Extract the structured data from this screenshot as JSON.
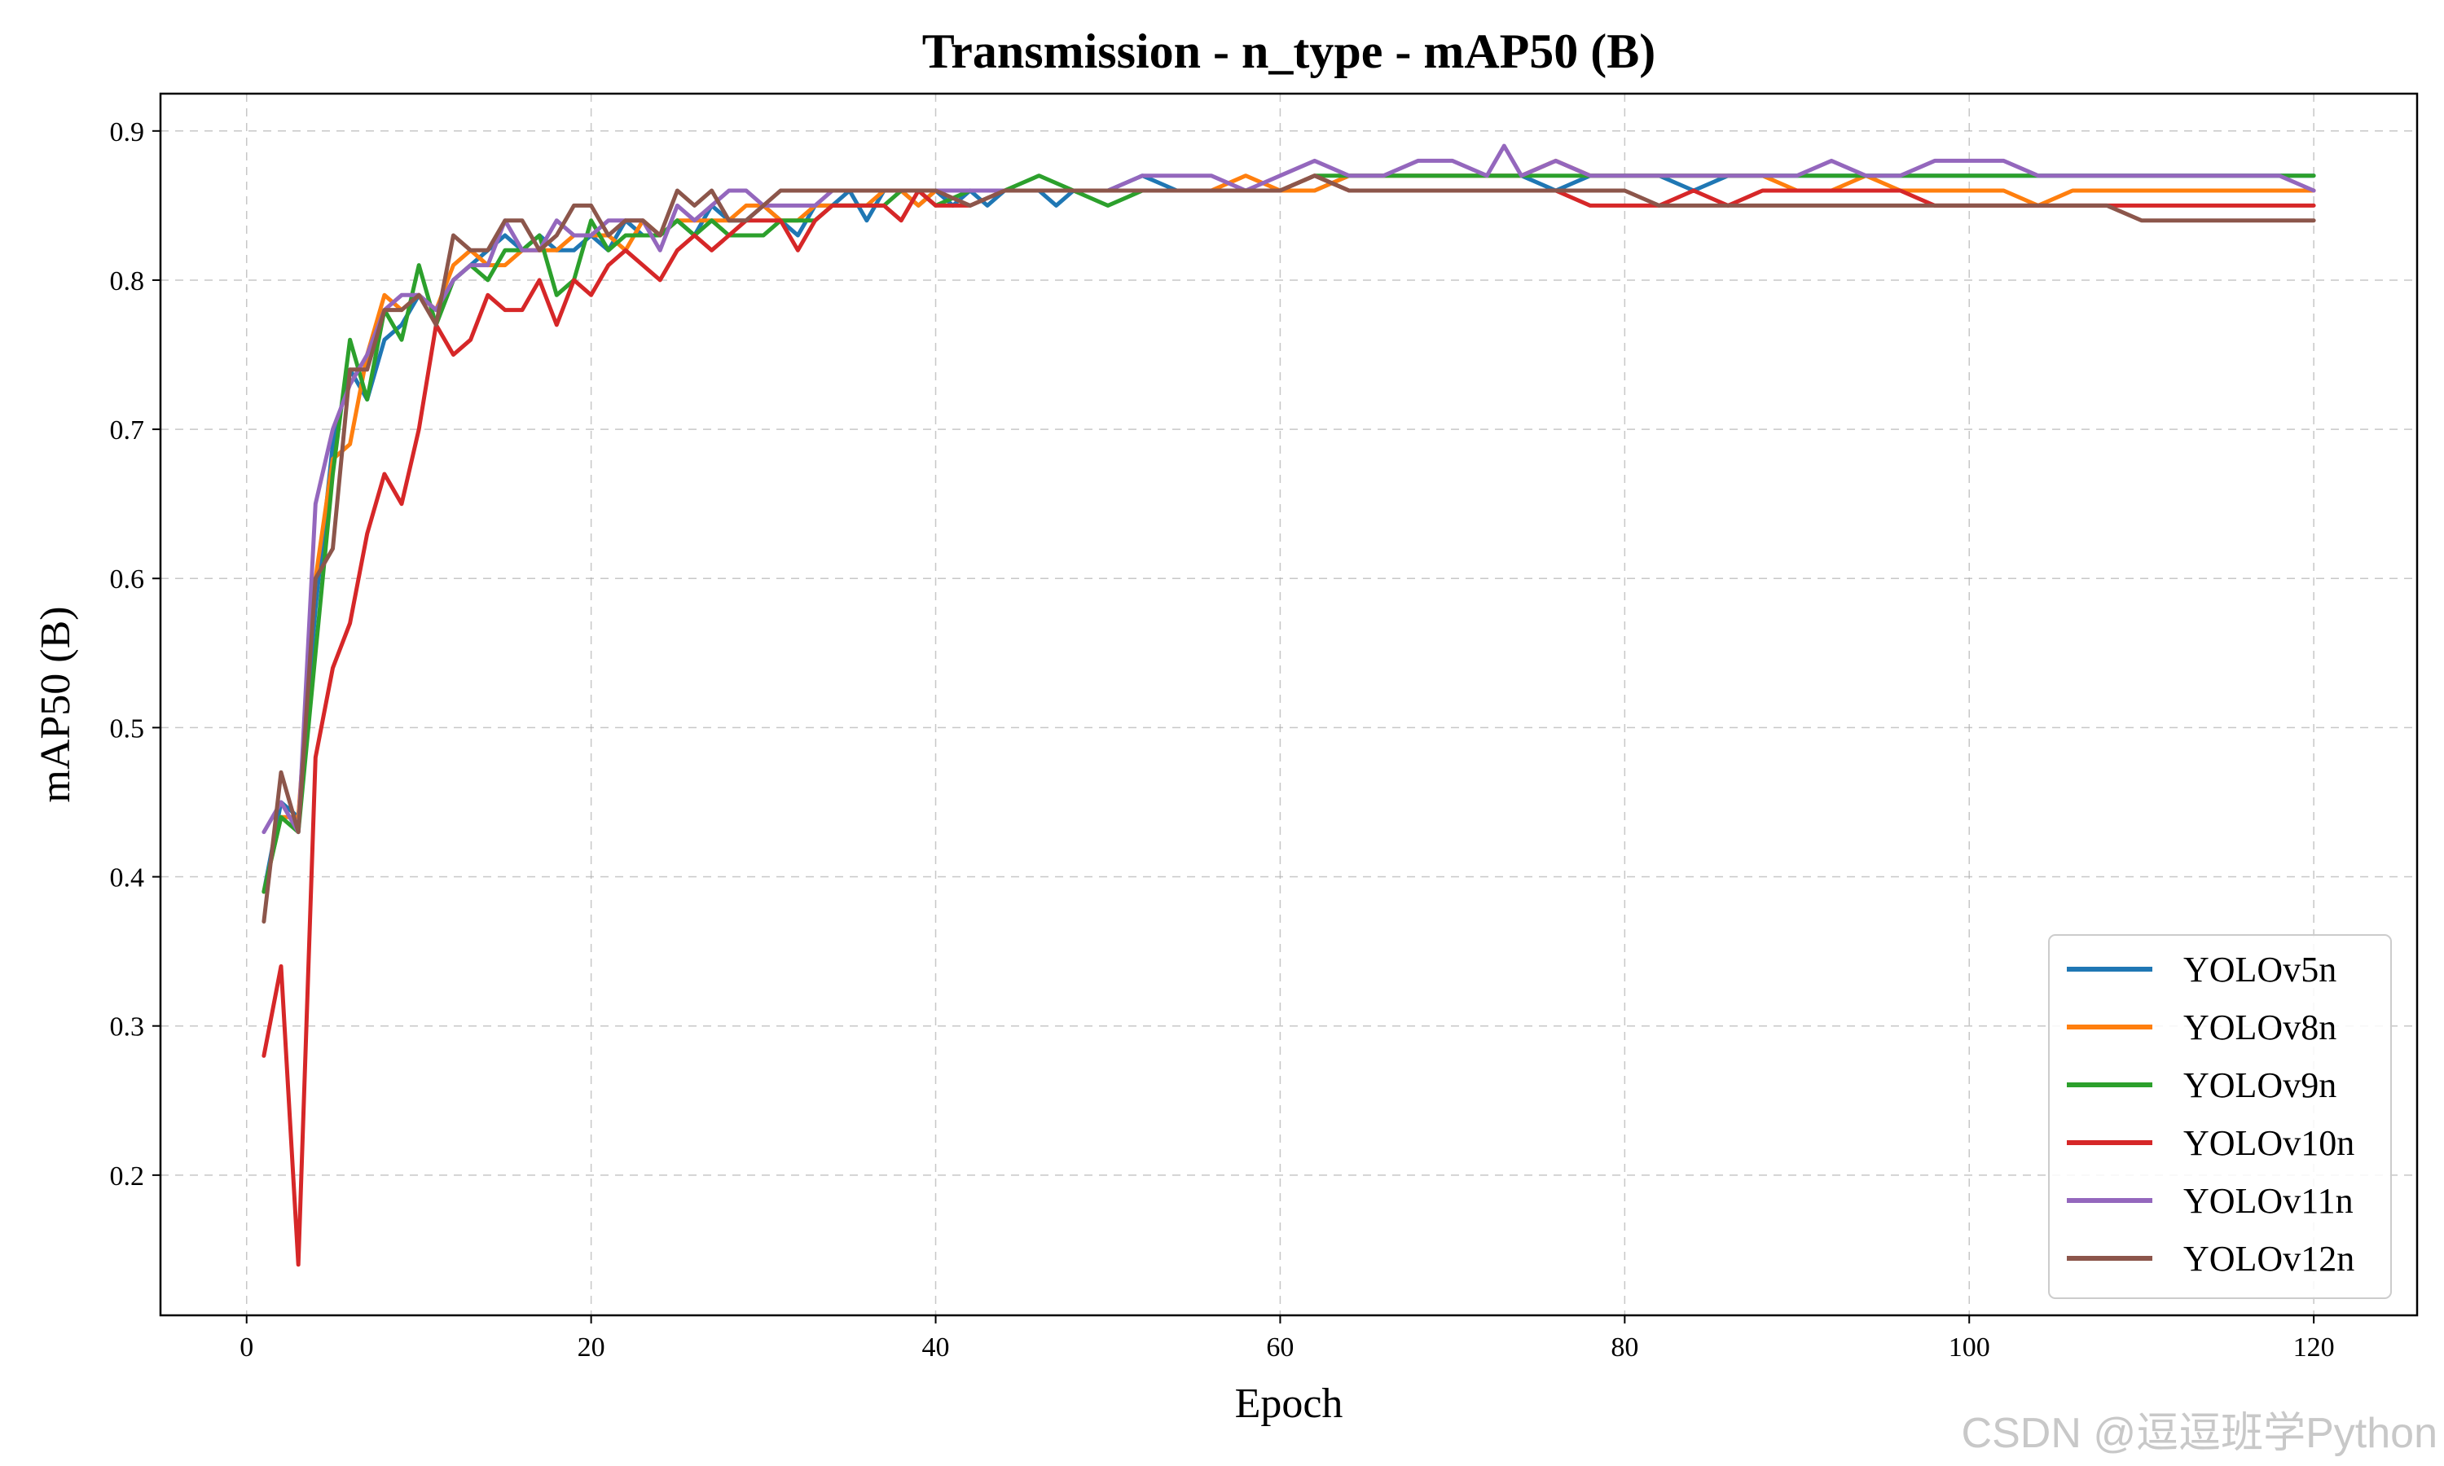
{
  "chart_data": {
    "type": "line",
    "title": "Transmission - n_type - mAP50 (B)",
    "xlabel": "Epoch",
    "ylabel": "mAP50 (B)",
    "xlim": [
      -5,
      126
    ],
    "ylim": [
      0.106,
      0.925
    ],
    "xticks": [
      0,
      20,
      40,
      60,
      80,
      100,
      120
    ],
    "yticks": [
      0.2,
      0.3,
      0.4,
      0.5,
      0.6,
      0.7,
      0.8,
      0.9
    ],
    "grid": true,
    "legend_position": "lower-right",
    "series": [
      {
        "name": "YOLOv5n",
        "color": "#1f77b4",
        "x": [
          1,
          2,
          3,
          4,
          5,
          6,
          7,
          8,
          9,
          10,
          11,
          12,
          13,
          14,
          15,
          16,
          17,
          18,
          19,
          20,
          21,
          22,
          23,
          24,
          25,
          26,
          27,
          28,
          29,
          30,
          31,
          32,
          33,
          34,
          35,
          36,
          37,
          38,
          39,
          40,
          41,
          42,
          43,
          44,
          45,
          46,
          47,
          48,
          49,
          50,
          52,
          54,
          56,
          58,
          60,
          62,
          64,
          66,
          68,
          70,
          72,
          74,
          76,
          78,
          80,
          82,
          84,
          86,
          88,
          90,
          92,
          94,
          96,
          98,
          100,
          102,
          104,
          106,
          108,
          110,
          112,
          114,
          116,
          118,
          120
        ],
        "y": [
          0.39,
          0.45,
          0.44,
          0.58,
          0.69,
          0.74,
          0.72,
          0.76,
          0.77,
          0.79,
          0.78,
          0.8,
          0.81,
          0.82,
          0.83,
          0.82,
          0.83,
          0.82,
          0.82,
          0.83,
          0.82,
          0.84,
          0.83,
          0.83,
          0.84,
          0.83,
          0.85,
          0.84,
          0.84,
          0.85,
          0.84,
          0.83,
          0.85,
          0.85,
          0.86,
          0.84,
          0.86,
          0.86,
          0.85,
          0.86,
          0.85,
          0.86,
          0.85,
          0.86,
          0.86,
          0.86,
          0.85,
          0.86,
          0.86,
          0.86,
          0.87,
          0.86,
          0.86,
          0.86,
          0.86,
          0.86,
          0.87,
          0.87,
          0.87,
          0.87,
          0.87,
          0.87,
          0.86,
          0.87,
          0.87,
          0.87,
          0.86,
          0.87,
          0.87,
          0.87,
          0.87,
          0.87,
          0.87,
          0.87,
          0.87,
          0.87,
          0.87,
          0.87,
          0.87,
          0.87,
          0.87,
          0.87,
          0.87,
          0.87,
          0.87
        ]
      },
      {
        "name": "YOLOv8n",
        "color": "#ff7f0e",
        "x": [
          1,
          2,
          3,
          4,
          5,
          6,
          7,
          8,
          9,
          10,
          11,
          12,
          13,
          14,
          15,
          16,
          17,
          18,
          19,
          20,
          21,
          22,
          23,
          24,
          25,
          26,
          27,
          28,
          29,
          30,
          31,
          32,
          33,
          34,
          35,
          36,
          37,
          38,
          39,
          40,
          42,
          44,
          46,
          48,
          50,
          52,
          54,
          56,
          58,
          60,
          62,
          64,
          66,
          68,
          70,
          72,
          74,
          76,
          78,
          80,
          82,
          84,
          86,
          88,
          90,
          92,
          94,
          96,
          98,
          100,
          102,
          104,
          106,
          108,
          110,
          112,
          114,
          116,
          118,
          120
        ],
        "y": [
          0.39,
          0.44,
          0.44,
          0.6,
          0.68,
          0.69,
          0.75,
          0.79,
          0.78,
          0.79,
          0.78,
          0.81,
          0.82,
          0.81,
          0.81,
          0.82,
          0.82,
          0.82,
          0.83,
          0.83,
          0.83,
          0.82,
          0.84,
          0.83,
          0.84,
          0.84,
          0.84,
          0.84,
          0.85,
          0.85,
          0.84,
          0.84,
          0.85,
          0.85,
          0.85,
          0.85,
          0.86,
          0.86,
          0.85,
          0.86,
          0.86,
          0.86,
          0.86,
          0.86,
          0.86,
          0.86,
          0.86,
          0.86,
          0.87,
          0.86,
          0.86,
          0.87,
          0.87,
          0.87,
          0.87,
          0.87,
          0.87,
          0.88,
          0.87,
          0.87,
          0.87,
          0.87,
          0.87,
          0.87,
          0.86,
          0.86,
          0.87,
          0.86,
          0.86,
          0.86,
          0.86,
          0.85,
          0.86,
          0.86,
          0.86,
          0.86,
          0.86,
          0.86,
          0.86,
          0.86
        ]
      },
      {
        "name": "YOLOv9n",
        "color": "#2ca02c",
        "x": [
          1,
          2,
          3,
          4,
          5,
          6,
          7,
          8,
          9,
          10,
          11,
          12,
          13,
          14,
          15,
          16,
          17,
          18,
          19,
          20,
          21,
          22,
          23,
          24,
          25,
          26,
          27,
          28,
          29,
          30,
          31,
          32,
          33,
          34,
          35,
          36,
          37,
          38,
          39,
          40,
          42,
          44,
          46,
          48,
          50,
          52,
          54,
          56,
          58,
          60,
          62,
          64,
          66,
          68,
          70,
          72,
          74,
          76,
          78,
          80,
          82,
          84,
          86,
          88,
          90,
          92,
          94,
          96,
          98,
          100,
          102,
          104,
          106,
          108,
          110,
          112,
          114,
          116,
          118,
          120
        ],
        "y": [
          0.39,
          0.44,
          0.43,
          0.55,
          0.67,
          0.76,
          0.72,
          0.78,
          0.76,
          0.81,
          0.77,
          0.8,
          0.81,
          0.8,
          0.82,
          0.82,
          0.83,
          0.79,
          0.8,
          0.84,
          0.82,
          0.83,
          0.83,
          0.83,
          0.84,
          0.83,
          0.84,
          0.83,
          0.83,
          0.83,
          0.84,
          0.84,
          0.84,
          0.85,
          0.85,
          0.85,
          0.85,
          0.86,
          0.86,
          0.85,
          0.86,
          0.86,
          0.87,
          0.86,
          0.85,
          0.86,
          0.86,
          0.86,
          0.86,
          0.86,
          0.87,
          0.87,
          0.87,
          0.87,
          0.87,
          0.87,
          0.87,
          0.87,
          0.87,
          0.87,
          0.87,
          0.87,
          0.87,
          0.87,
          0.87,
          0.87,
          0.87,
          0.87,
          0.87,
          0.87,
          0.87,
          0.87,
          0.87,
          0.87,
          0.87,
          0.87,
          0.87,
          0.87,
          0.87,
          0.87
        ]
      },
      {
        "name": "YOLOv10n",
        "color": "#d62728",
        "x": [
          1,
          2,
          3,
          4,
          5,
          6,
          7,
          8,
          9,
          10,
          11,
          12,
          13,
          14,
          15,
          16,
          17,
          18,
          19,
          20,
          21,
          22,
          23,
          24,
          25,
          26,
          27,
          28,
          29,
          30,
          31,
          32,
          33,
          34,
          35,
          36,
          37,
          38,
          39,
          40,
          42,
          44,
          46,
          48,
          50,
          52,
          54,
          56,
          58,
          60,
          62,
          64,
          66,
          68,
          70,
          72,
          74,
          76,
          78,
          80,
          82,
          84,
          86,
          88,
          90,
          92,
          94,
          96,
          98,
          100,
          102,
          104,
          106,
          108,
          110,
          112,
          114,
          116,
          118,
          120
        ],
        "y": [
          0.28,
          0.34,
          0.14,
          0.48,
          0.54,
          0.57,
          0.63,
          0.67,
          0.65,
          0.7,
          0.77,
          0.75,
          0.76,
          0.79,
          0.78,
          0.78,
          0.8,
          0.77,
          0.8,
          0.79,
          0.81,
          0.82,
          0.81,
          0.8,
          0.82,
          0.83,
          0.82,
          0.83,
          0.84,
          0.84,
          0.84,
          0.82,
          0.84,
          0.85,
          0.85,
          0.85,
          0.85,
          0.84,
          0.86,
          0.85,
          0.85,
          0.86,
          0.86,
          0.86,
          0.86,
          0.86,
          0.86,
          0.86,
          0.86,
          0.86,
          0.87,
          0.86,
          0.86,
          0.86,
          0.86,
          0.86,
          0.86,
          0.86,
          0.85,
          0.85,
          0.85,
          0.86,
          0.85,
          0.86,
          0.86,
          0.86,
          0.86,
          0.86,
          0.85,
          0.85,
          0.85,
          0.85,
          0.85,
          0.85,
          0.85,
          0.85,
          0.85,
          0.85,
          0.85,
          0.85
        ]
      },
      {
        "name": "YOLOv11n",
        "color": "#9467bd",
        "x": [
          1,
          2,
          3,
          4,
          5,
          6,
          7,
          8,
          9,
          10,
          11,
          12,
          13,
          14,
          15,
          16,
          17,
          18,
          19,
          20,
          21,
          22,
          23,
          24,
          25,
          26,
          27,
          28,
          29,
          30,
          31,
          32,
          33,
          34,
          35,
          36,
          37,
          38,
          39,
          40,
          42,
          44,
          46,
          48,
          50,
          52,
          54,
          56,
          58,
          60,
          62,
          64,
          66,
          68,
          70,
          72,
          73,
          74,
          76,
          78,
          80,
          82,
          84,
          86,
          88,
          90,
          92,
          94,
          96,
          98,
          100,
          102,
          104,
          106,
          108,
          110,
          112,
          114,
          116,
          118,
          120
        ],
        "y": [
          0.43,
          0.45,
          0.43,
          0.65,
          0.7,
          0.73,
          0.75,
          0.78,
          0.79,
          0.79,
          0.78,
          0.8,
          0.81,
          0.81,
          0.84,
          0.82,
          0.82,
          0.84,
          0.83,
          0.83,
          0.84,
          0.84,
          0.84,
          0.82,
          0.85,
          0.84,
          0.85,
          0.86,
          0.86,
          0.85,
          0.85,
          0.85,
          0.85,
          0.86,
          0.86,
          0.86,
          0.86,
          0.86,
          0.86,
          0.86,
          0.86,
          0.86,
          0.86,
          0.86,
          0.86,
          0.87,
          0.87,
          0.87,
          0.86,
          0.87,
          0.88,
          0.87,
          0.87,
          0.88,
          0.88,
          0.87,
          0.89,
          0.87,
          0.88,
          0.87,
          0.87,
          0.87,
          0.87,
          0.87,
          0.87,
          0.87,
          0.88,
          0.87,
          0.87,
          0.88,
          0.88,
          0.88,
          0.87,
          0.87,
          0.87,
          0.87,
          0.87,
          0.87,
          0.87,
          0.87,
          0.86
        ]
      },
      {
        "name": "YOLOv12n",
        "color": "#8c564b",
        "x": [
          1,
          2,
          3,
          4,
          5,
          6,
          7,
          8,
          9,
          10,
          11,
          12,
          13,
          14,
          15,
          16,
          17,
          18,
          19,
          20,
          21,
          22,
          23,
          24,
          25,
          26,
          27,
          28,
          29,
          30,
          31,
          32,
          33,
          34,
          35,
          36,
          37,
          38,
          39,
          40,
          42,
          44,
          46,
          48,
          50,
          52,
          54,
          56,
          58,
          60,
          62,
          64,
          66,
          68,
          70,
          72,
          74,
          76,
          78,
          80,
          82,
          84,
          86,
          88,
          90,
          92,
          94,
          96,
          98,
          100,
          102,
          104,
          106,
          108,
          110,
          112,
          114,
          116,
          118,
          120
        ],
        "y": [
          0.37,
          0.47,
          0.43,
          0.6,
          0.62,
          0.74,
          0.74,
          0.78,
          0.78,
          0.79,
          0.77,
          0.83,
          0.82,
          0.82,
          0.84,
          0.84,
          0.82,
          0.83,
          0.85,
          0.85,
          0.83,
          0.84,
          0.84,
          0.83,
          0.86,
          0.85,
          0.86,
          0.84,
          0.84,
          0.85,
          0.86,
          0.86,
          0.86,
          0.86,
          0.86,
          0.86,
          0.86,
          0.86,
          0.86,
          0.86,
          0.85,
          0.86,
          0.86,
          0.86,
          0.86,
          0.86,
          0.86,
          0.86,
          0.86,
          0.86,
          0.87,
          0.86,
          0.86,
          0.86,
          0.86,
          0.86,
          0.86,
          0.86,
          0.86,
          0.86,
          0.85,
          0.85,
          0.85,
          0.85,
          0.85,
          0.85,
          0.85,
          0.85,
          0.85,
          0.85,
          0.85,
          0.85,
          0.85,
          0.85,
          0.84,
          0.84,
          0.84,
          0.84,
          0.84,
          0.84
        ]
      }
    ]
  },
  "watermark": "CSDN @逗逗班学Python"
}
